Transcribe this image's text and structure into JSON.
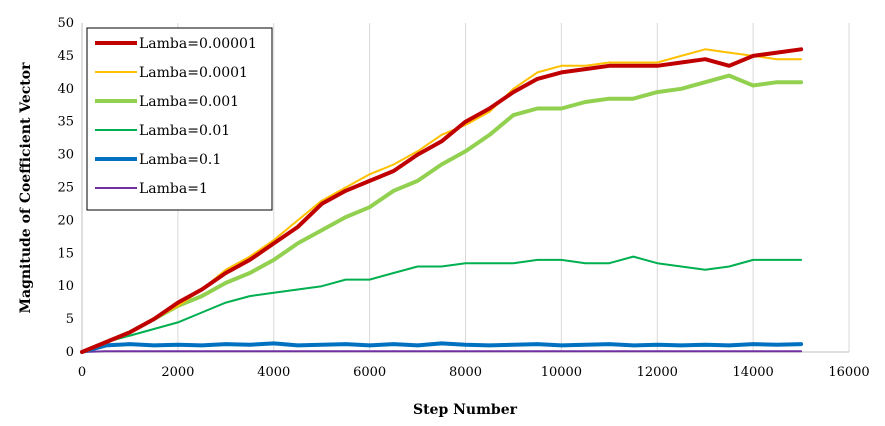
{
  "chart_data": {
    "type": "line",
    "title": "",
    "xlabel": "Step Number",
    "ylabel": "Magnitude of Coefficient Vector",
    "xlim": [
      0,
      16000
    ],
    "ylim": [
      0,
      50
    ],
    "xticks": [
      0,
      2000,
      4000,
      6000,
      8000,
      10000,
      12000,
      14000,
      16000
    ],
    "yticks": [
      0,
      5,
      10,
      15,
      20,
      25,
      30,
      35,
      40,
      45,
      50
    ],
    "grid": "vertical",
    "legend_position": "top-left",
    "series": [
      {
        "name": "Lamba=0.00001",
        "color": "#c00000",
        "width": 4,
        "x": [
          0,
          500,
          1000,
          1500,
          2000,
          2500,
          3000,
          3500,
          4000,
          4500,
          5000,
          5500,
          6000,
          6500,
          7000,
          7500,
          8000,
          8500,
          9000,
          9500,
          10000,
          10500,
          11000,
          11500,
          12000,
          12500,
          13000,
          13500,
          14000,
          14500,
          15000
        ],
        "y": [
          0,
          1.5,
          3,
          5,
          7.5,
          9.5,
          12,
          14,
          16.5,
          19,
          22.5,
          24.5,
          26,
          27.5,
          30,
          32,
          35,
          37,
          39.5,
          41.5,
          42.5,
          43,
          43.5,
          43.5,
          43.5,
          44,
          44.5,
          43.5,
          45,
          45.5,
          46
        ]
      },
      {
        "name": "Lamba=0.0001",
        "color": "#ffc000",
        "width": 2,
        "x": [
          0,
          500,
          1000,
          1500,
          2000,
          2500,
          3000,
          3500,
          4000,
          4500,
          5000,
          5500,
          6000,
          6500,
          7000,
          7500,
          8000,
          8500,
          9000,
          9500,
          10000,
          10500,
          11000,
          11500,
          12000,
          12500,
          13000,
          13500,
          14000,
          14500,
          15000
        ],
        "y": [
          0,
          1.5,
          3,
          5,
          7,
          9.5,
          12.5,
          14.5,
          17,
          20,
          23,
          25,
          27,
          28.5,
          30.5,
          33,
          34.5,
          36.5,
          40,
          42.5,
          43.5,
          43.5,
          44,
          44,
          44,
          45,
          46,
          45.5,
          45,
          44.5,
          44.5
        ]
      },
      {
        "name": "Lamba=0.001",
        "color": "#92d050",
        "width": 4,
        "x": [
          0,
          500,
          1000,
          1500,
          2000,
          2500,
          3000,
          3500,
          4000,
          4500,
          5000,
          5500,
          6000,
          6500,
          7000,
          7500,
          8000,
          8500,
          9000,
          9500,
          10000,
          10500,
          11000,
          11500,
          12000,
          12500,
          13000,
          13500,
          14000,
          14500,
          15000
        ],
        "y": [
          0,
          1.5,
          3,
          5,
          7,
          8.5,
          10.5,
          12,
          14,
          16.5,
          18.5,
          20.5,
          22,
          24.5,
          26,
          28.5,
          30.5,
          33,
          36,
          37,
          37,
          38,
          38.5,
          38.5,
          39.5,
          40,
          41,
          42,
          40.5,
          41,
          41
        ]
      },
      {
        "name": "Lamba=0.01",
        "color": "#00b050",
        "width": 2,
        "x": [
          0,
          500,
          1000,
          1500,
          2000,
          2500,
          3000,
          3500,
          4000,
          4500,
          5000,
          5500,
          6000,
          6500,
          7000,
          7500,
          8000,
          8500,
          9000,
          9500,
          10000,
          10500,
          11000,
          11500,
          12000,
          12500,
          13000,
          13500,
          14000,
          14500,
          15000
        ],
        "y": [
          0,
          1.5,
          2.5,
          3.5,
          4.5,
          6,
          7.5,
          8.5,
          9,
          9.5,
          10,
          11,
          11,
          12,
          13,
          13,
          13.5,
          13.5,
          13.5,
          14,
          14,
          13.5,
          13.5,
          14.5,
          13.5,
          13,
          12.5,
          13,
          14,
          14,
          14
        ]
      },
      {
        "name": "Lamba=0.1",
        "color": "#0070c0",
        "width": 4,
        "x": [
          0,
          500,
          1000,
          1500,
          2000,
          2500,
          3000,
          3500,
          4000,
          4500,
          5000,
          5500,
          6000,
          6500,
          7000,
          7500,
          8000,
          8500,
          9000,
          9500,
          10000,
          10500,
          11000,
          11500,
          12000,
          12500,
          13000,
          13500,
          14000,
          14500,
          15000
        ],
        "y": [
          0,
          1,
          1.2,
          1,
          1.1,
          1,
          1.2,
          1.1,
          1.3,
          1,
          1.1,
          1.2,
          1,
          1.2,
          1,
          1.3,
          1.1,
          1,
          1.1,
          1.2,
          1,
          1.1,
          1.2,
          1,
          1.1,
          1,
          1.1,
          1,
          1.2,
          1.1,
          1.2
        ]
      },
      {
        "name": "Lamba=1",
        "color": "#7030a0",
        "width": 2,
        "x": [
          0,
          500,
          1000,
          1500,
          2000,
          2500,
          3000,
          3500,
          4000,
          4500,
          5000,
          5500,
          6000,
          6500,
          7000,
          7500,
          8000,
          8500,
          9000,
          9500,
          10000,
          10500,
          11000,
          11500,
          12000,
          12500,
          13000,
          13500,
          14000,
          14500,
          15000
        ],
        "y": [
          0,
          0.1,
          0.1,
          0.1,
          0.1,
          0.1,
          0.1,
          0.1,
          0.1,
          0.1,
          0.1,
          0.1,
          0.1,
          0.1,
          0.1,
          0.1,
          0.1,
          0.1,
          0.1,
          0.1,
          0.1,
          0.1,
          0.1,
          0.1,
          0.1,
          0.1,
          0.1,
          0.1,
          0.1,
          0.1,
          0.1
        ]
      }
    ]
  }
}
